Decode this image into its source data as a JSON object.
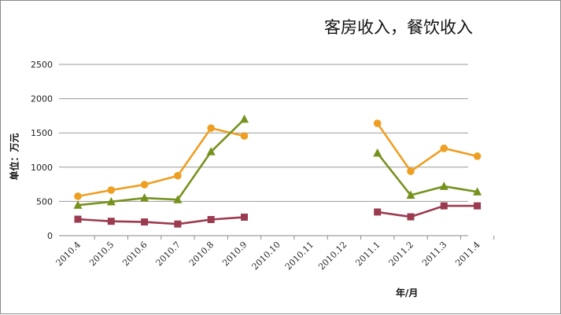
{
  "chart_data": {
    "type": "line",
    "title": "客房收入，餐饮收入",
    "ylabel": "单位：万元",
    "xlabel": "年/月",
    "categories": [
      "2010.4",
      "2010.5",
      "2010.6",
      "2010.7",
      "2010.8",
      "2010.9",
      "2010.10",
      "2010.11",
      "2010.12",
      "2011.1",
      "2011.2",
      "2011.3",
      "2011.4"
    ],
    "ylim": [
      0,
      2500
    ],
    "yticks": [
      0,
      500,
      1000,
      1500,
      2000,
      2500
    ],
    "grid": true,
    "series": [
      {
        "color": "#ED9F22",
        "marker": "circle",
        "values": [
          575,
          665,
          745,
          875,
          1570,
          1455,
          null,
          null,
          null,
          1640,
          940,
          1275,
          1160
        ]
      },
      {
        "color": "#76921E",
        "marker": "triangle",
        "values": [
          445,
          495,
          550,
          525,
          1225,
          1700,
          null,
          null,
          null,
          1205,
          590,
          720,
          640
        ]
      },
      {
        "color": "#9B3B50",
        "marker": "square",
        "values": [
          240,
          210,
          200,
          170,
          235,
          270,
          null,
          null,
          null,
          345,
          275,
          435,
          435
        ]
      }
    ]
  }
}
